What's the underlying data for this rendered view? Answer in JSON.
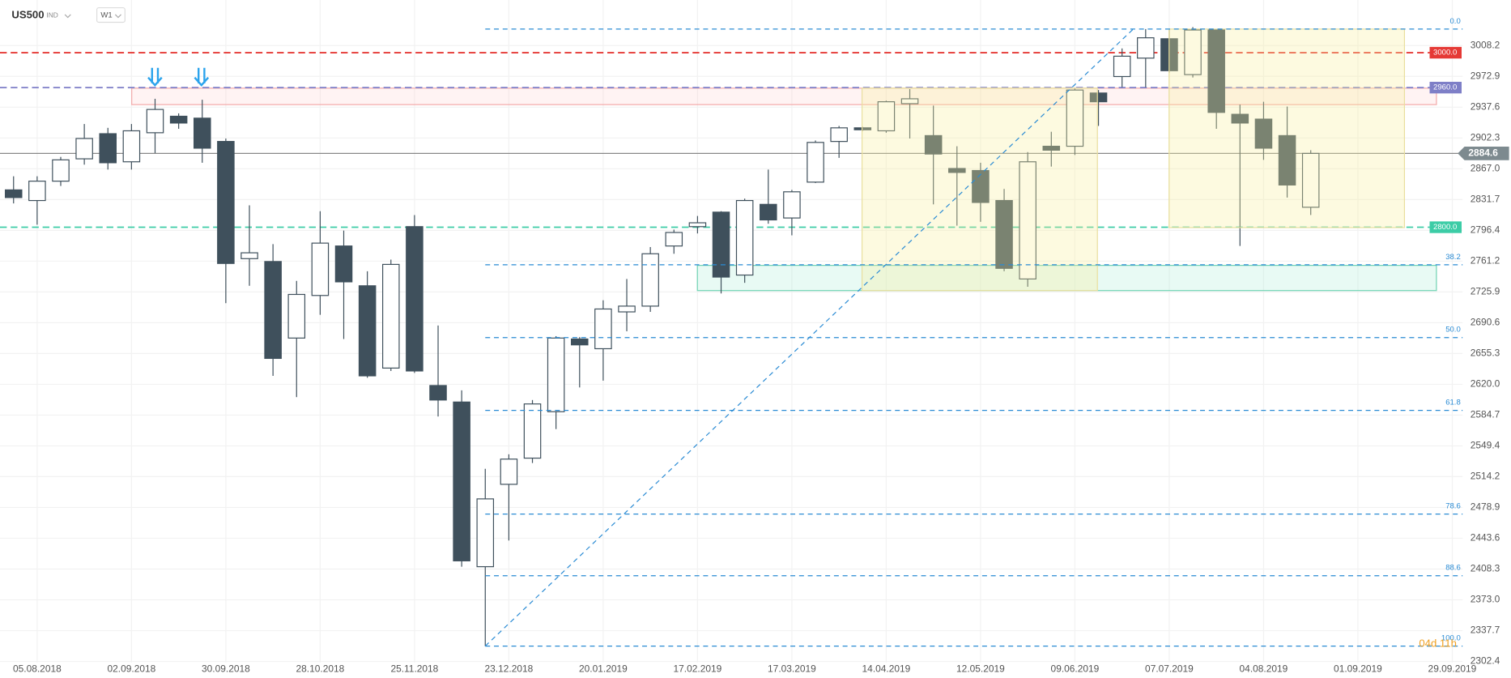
{
  "chart_data": {
    "type": "candlestick",
    "title": "US500",
    "instrument_class": "IND",
    "timeframe": "W1",
    "countdown": "04d 11h",
    "categories": [
      null,
      "05.08.2018",
      null,
      null,
      null,
      "02.09.2018",
      null,
      null,
      null,
      "30.09.2018",
      null,
      null,
      null,
      "28.10.2018",
      null,
      null,
      null,
      "25.11.2018",
      null,
      null,
      null,
      "23.12.2018",
      null,
      null,
      null,
      "20.01.2019",
      null,
      null,
      null,
      "17.02.2019",
      null,
      null,
      null,
      "17.03.2019",
      null,
      null,
      null,
      "14.04.2019",
      null,
      null,
      null,
      "12.05.2019",
      null,
      null,
      null,
      "09.06.2019",
      null,
      null,
      null,
      "07.07.2019",
      null,
      null,
      null,
      "04.08.2019",
      null,
      null,
      null,
      "01.09.2019",
      null,
      null,
      null,
      "29.09.2019"
    ],
    "open": [
      2842.8,
      2830.6,
      2852.8,
      2878.4,
      2907.2,
      2875.0,
      2908.3,
      2927.2,
      2925.0,
      2898.3,
      2764.0,
      2760.7,
      2673.0,
      2721.8,
      2778.5,
      2732.9,
      2638.6,
      2800.7,
      2618.6,
      2599.7,
      2411.0,
      2505.4,
      2535.4,
      2588.6,
      2671.9,
      2660.8,
      2703.0,
      2709.6,
      2778.5,
      2800.7,
      2817.3,
      2745.2,
      2826.2,
      2810.6,
      2851.7,
      2898.3,
      2913.9,
      2910.5,
      2941.6,
      2905.0,
      2867.3,
      2865.0,
      2830.6,
      2740.7,
      2892.8,
      2892.8,
      2953.8,
      2972.7,
      2993.8,
      3016.0,
      2974.9,
      3026.0,
      2929.4,
      2923.9,
      2905.0,
      2822.9,
      null,
      null,
      null,
      null,
      null,
      null
    ],
    "high": [
      2858.4,
      2858.4,
      2880.6,
      2918.3,
      2913.9,
      2918.3,
      2947.2,
      2930.5,
      2946.1,
      2901.7,
      2825.1,
      2780.7,
      2738.5,
      2818.4,
      2796.2,
      2749.6,
      2762.9,
      2814.0,
      2687.4,
      2613.1,
      2523.2,
      2539.8,
      2602.0,
      2675.2,
      2674.1,
      2716.3,
      2740.7,
      2777.3,
      2797.3,
      2812.9,
      2818.4,
      2832.8,
      2866.1,
      2842.8,
      2899.4,
      2916.1,
      2915.0,
      2945.0,
      2958.3,
      2939.4,
      2892.8,
      2873.9,
      2843.9,
      2886.1,
      2909.4,
      2959.4,
      2957.2,
      3004.9,
      3027.1,
      3027.1,
      3029.3,
      3027.1,
      2940.5,
      2943.8,
      2938.3,
      2888.3,
      null,
      null,
      null,
      null,
      null,
      null
    ],
    "low": [
      2827.3,
      2802.9,
      2847.3,
      2871.7,
      2866.1,
      2866.1,
      2885.0,
      2912.8,
      2873.9,
      2713.0,
      2732.9,
      2629.7,
      2605.3,
      2699.6,
      2671.9,
      2627.5,
      2635.3,
      2633.0,
      2583.1,
      2411.0,
      2320.0,
      2441.0,
      2529.8,
      2568.7,
      2616.4,
      2624.2,
      2680.8,
      2703.0,
      2769.6,
      2792.9,
      2724.1,
      2736.3,
      2804.0,
      2790.7,
      2850.6,
      2879.5,
      2910.5,
      2908.3,
      2901.7,
      2826.2,
      2801.8,
      2806.2,
      2749.6,
      2731.8,
      2869.5,
      2882.8,
      2916.1,
      2960.5,
      2960.5,
      2977.1,
      2971.6,
      2912.8,
      2778.5,
      2877.2,
      2834.0,
      2814.0,
      null,
      null,
      null,
      null,
      null,
      null
    ],
    "close": [
      2834.0,
      2852.8,
      2877.2,
      2901.7,
      2873.9,
      2910.5,
      2935.0,
      2919.4,
      2890.6,
      2758.5,
      2770.7,
      2649.7,
      2723.0,
      2781.8,
      2737.4,
      2629.7,
      2757.4,
      2635.3,
      2602.0,
      2417.7,
      2488.7,
      2534.3,
      2597.5,
      2673.0,
      2665.2,
      2706.3,
      2709.6,
      2769.6,
      2794.0,
      2805.1,
      2742.9,
      2830.6,
      2808.4,
      2840.6,
      2897.2,
      2913.9,
      2911.7,
      2943.8,
      2947.2,
      2883.9,
      2862.8,
      2828.4,
      2752.9,
      2875.0,
      2888.3,
      2957.2,
      2943.8,
      2996.0,
      3017.1,
      2979.4,
      3026.0,
      2931.6,
      2919.4,
      2890.6,
      2848.4,
      2884.6,
      null,
      null,
      null,
      null,
      null,
      null
    ],
    "up_color": "#ffffff",
    "down_color": "#3f505c",
    "ylim": [
      2301.2,
      3060.4
    ],
    "yticks": [
      3008.2,
      2972.9,
      2937.6,
      2902.3,
      {
        "value": 2867,
        "label": "2867.0"
      },
      2831.7,
      2796.4,
      2761.2,
      2725.9,
      2690.6,
      2655.3,
      {
        "value": 2620,
        "label": "2620.0"
      },
      2584.7,
      2549.4,
      2514.2,
      2478.9,
      2443.6,
      2408.3,
      {
        "value": 2373,
        "label": "2373.0"
      },
      2337.7,
      2302.4
    ],
    "grid": true,
    "last_price": 2884.6,
    "levels": [
      {
        "value": 3000,
        "label": "3000.0",
        "color": "#e53935"
      },
      {
        "value": 2960,
        "label": "2960.0",
        "color": "#7e7fc7"
      },
      {
        "value": 2800,
        "label": "2800.0",
        "color": "#3ccca6"
      }
    ],
    "fibonacci": {
      "high": 3027.1,
      "low": 2320.0,
      "color": "#2a8bd4",
      "levels": [
        {
          "value": 0,
          "label": "0.0"
        },
        38.2,
        {
          "value": 50,
          "label": "50.0"
        },
        61.8,
        78.6,
        88.6,
        {
          "value": 100,
          "label": "100.0"
        }
      ]
    }
  }
}
